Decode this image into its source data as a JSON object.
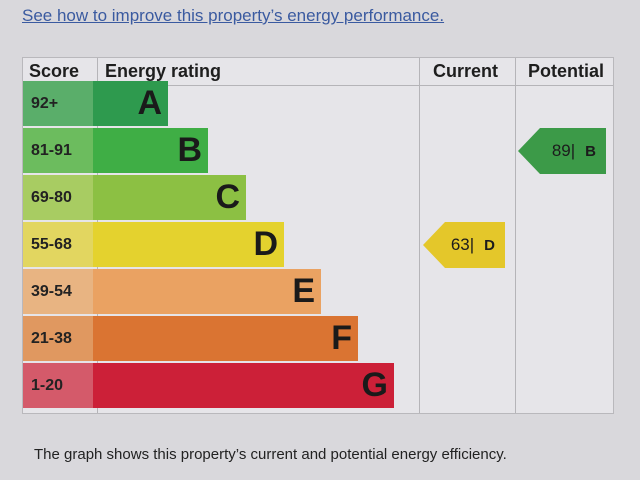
{
  "link_text": "See how to improve this property’s energy performance.",
  "caption": "The graph shows this property’s current and potential energy efficiency.",
  "chart_data": {
    "type": "bar",
    "headers": {
      "score": "Score",
      "rating": "Energy rating",
      "current": "Current",
      "potential": "Potential"
    },
    "bands": [
      {
        "score": "92+",
        "letter": "A",
        "color": "#2e9a4e",
        "score_color": "#5aae6a"
      },
      {
        "score": "81-91",
        "letter": "B",
        "color": "#3fae45",
        "score_color": "#6cbc5e"
      },
      {
        "score": "69-80",
        "letter": "C",
        "color": "#8cc043",
        "score_color": "#a8cc62"
      },
      {
        "score": "55-68",
        "letter": "D",
        "color": "#e4d22e",
        "score_color": "#e2d660"
      },
      {
        "score": "39-54",
        "letter": "E",
        "color": "#eaa262",
        "score_color": "#e8b482"
      },
      {
        "score": "21-38",
        "letter": "F",
        "color": "#da7432",
        "score_color": "#e09860"
      },
      {
        "score": "1-20",
        "letter": "G",
        "color": "#cc2038",
        "score_color": "#d45a6a"
      }
    ],
    "current": {
      "value": "63",
      "letter": "D",
      "color": "#e4c72a"
    },
    "potential": {
      "value": "89",
      "letter": "B",
      "color": "#3c9a48"
    }
  }
}
